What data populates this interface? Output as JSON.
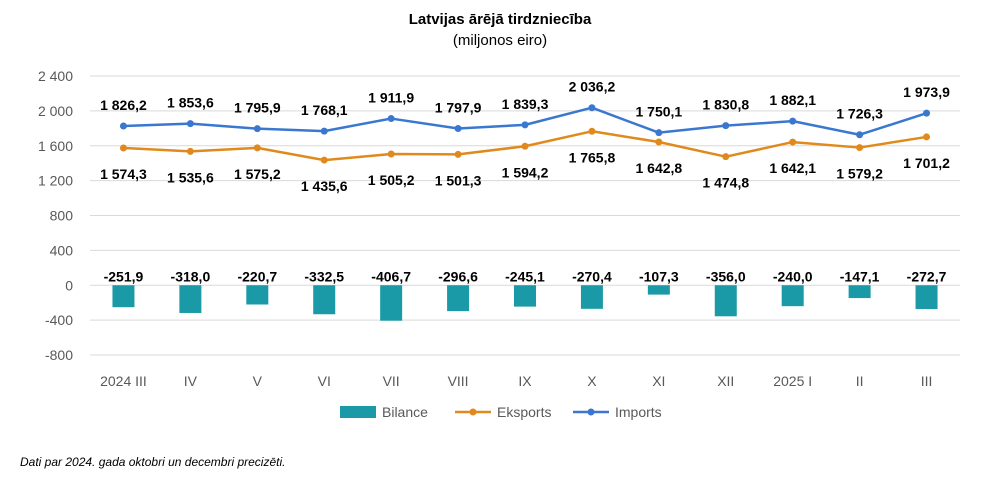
{
  "chart_data": {
    "type": "bar+line",
    "title": "Latvijas ārējā tirdzniecība",
    "subtitle": "(miljonos eiro)",
    "categories": [
      "2024 III",
      "IV",
      "V",
      "VI",
      "VII",
      "VIII",
      "IX",
      "X",
      "XI",
      "XII",
      "2025 I",
      "II",
      "III"
    ],
    "ylim": [
      -800,
      2400
    ],
    "yticks": [
      -800,
      -400,
      0,
      400,
      800,
      1200,
      1600,
      2000,
      2400
    ],
    "ytick_labels": [
      "-800",
      "-400",
      "0",
      "400",
      "800",
      "1 200",
      "1 600",
      "2 000",
      "2 400"
    ],
    "grid": true,
    "legend_position": "bottom",
    "series": [
      {
        "name": "Bilance",
        "type": "bar",
        "color": "#1a9aa6",
        "values": [
          -251.9,
          -318.0,
          -220.7,
          -332.5,
          -406.7,
          -296.6,
          -245.1,
          -270.4,
          -107.3,
          -356.0,
          -240.0,
          -147.1,
          -272.7
        ],
        "labels": [
          "-251,9",
          "-318,0",
          "-220,7",
          "-332,5",
          "-406,7",
          "-296,6",
          "-245,1",
          "-270,4",
          "-107,3",
          "-356,0",
          "-240,0",
          "-147,1",
          "-272,7"
        ]
      },
      {
        "name": "Eksports",
        "type": "line",
        "color": "#e08a1e",
        "values": [
          1574.3,
          1535.6,
          1575.2,
          1435.6,
          1505.2,
          1501.3,
          1594.2,
          1765.8,
          1642.8,
          1474.8,
          1642.1,
          1579.2,
          1701.2
        ],
        "labels": [
          "1 574,3",
          "1 535,6",
          "1 575,2",
          "1 435,6",
          "1 505,2",
          "1 501,3",
          "1 594,2",
          "1 765,8",
          "1 642,8",
          "1 474,8",
          "1 642,1",
          "1 579,2",
          "1 701,2"
        ]
      },
      {
        "name": "Imports",
        "type": "line",
        "color": "#3a78d0",
        "values": [
          1826.2,
          1853.6,
          1795.9,
          1768.1,
          1911.9,
          1797.9,
          1839.3,
          2036.2,
          1750.1,
          1830.8,
          1882.1,
          1726.3,
          1973.9
        ],
        "labels": [
          "1 826,2",
          "1 853,6",
          "1 795,9",
          "1 768,1",
          "1 911,9",
          "1 797,9",
          "1 839,3",
          "2 036,2",
          "1 750,1",
          "1 830,8",
          "1 882,1",
          "1 726,3",
          "1 973,9"
        ]
      }
    ]
  },
  "footnote": "Dati par 2024. gada oktobri un decembri precizēti."
}
